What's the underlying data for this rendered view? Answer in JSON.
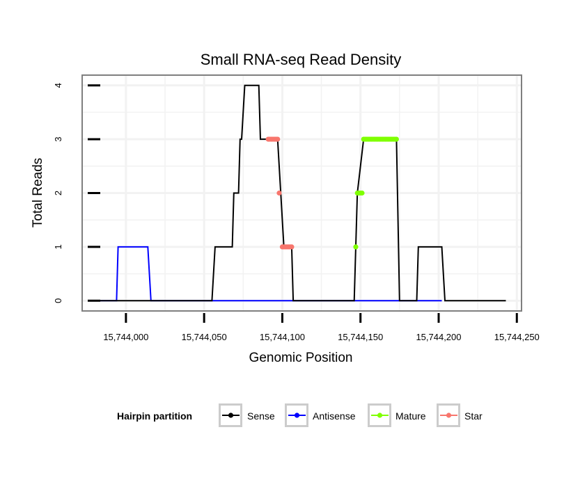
{
  "chart_data": {
    "type": "line",
    "title": "Small RNA-seq Read Density",
    "xlabel": "Genomic Position",
    "ylabel": "Total Reads",
    "xlim": [
      15743972,
      15744253
    ],
    "ylim": [
      -0.19,
      4.19
    ],
    "x_ticks": [
      15744000,
      15744050,
      15744100,
      15744150,
      15744200,
      15744250
    ],
    "x_tick_labels": [
      "15,744,000",
      "15,744,050",
      "15,744,100",
      "15,744,150",
      "15,744,200",
      "15,744,250"
    ],
    "y_ticks": [
      0,
      1,
      2,
      3,
      4
    ],
    "y_tick_labels": [
      "0",
      "1",
      "2",
      "3",
      "4"
    ],
    "grid": true,
    "legend": {
      "title": "Hairpin partition",
      "position": "bottom",
      "entries": [
        "Sense",
        "Antisense",
        "Mature",
        "Star"
      ]
    },
    "series": [
      {
        "name": "Sense",
        "color": "#000000",
        "points": [
          [
            15743981,
            0
          ],
          [
            15744055,
            0
          ],
          [
            15744057,
            1
          ],
          [
            15744068,
            1
          ],
          [
            15744069,
            2
          ],
          [
            15744072,
            2
          ],
          [
            15744073,
            3
          ],
          [
            15744074,
            3
          ],
          [
            15744076,
            4
          ],
          [
            15744085,
            4
          ],
          [
            15744086,
            3
          ],
          [
            15744097,
            3
          ],
          [
            15744099,
            2
          ],
          [
            15744101,
            1
          ],
          [
            15744106,
            1
          ],
          [
            15744107,
            0
          ],
          [
            15744146,
            0
          ],
          [
            15744148,
            2
          ],
          [
            15744152,
            3
          ],
          [
            15744173,
            3
          ],
          [
            15744175,
            0
          ],
          [
            15744186,
            0
          ],
          [
            15744187,
            1
          ],
          [
            15744202,
            1
          ],
          [
            15744204,
            0
          ],
          [
            15744243,
            0
          ]
        ]
      },
      {
        "name": "Antisense",
        "color": "#0000ff",
        "points": [
          [
            15743981,
            0
          ],
          [
            15743994,
            0
          ],
          [
            15743995,
            1
          ],
          [
            15744014,
            1
          ],
          [
            15744016,
            0
          ],
          [
            15744202,
            0
          ]
        ]
      },
      {
        "name": "Mature",
        "color": "#7fff00",
        "marker_x": [
          15744147,
          15744148,
          15744149,
          15744150,
          15744151,
          15744152,
          15744153,
          15744154,
          15744155,
          15744156,
          15744157,
          15744158,
          15744159,
          15744160,
          15744161,
          15744162,
          15744163,
          15744164,
          15744165,
          15744166,
          15744167,
          15744168,
          15744169,
          15744170,
          15744171,
          15744172,
          15744173
        ],
        "marker_y": [
          1,
          2,
          2,
          2,
          2,
          3,
          3,
          3,
          3,
          3,
          3,
          3,
          3,
          3,
          3,
          3,
          3,
          3,
          3,
          3,
          3,
          3,
          3,
          3,
          3,
          3,
          3
        ]
      },
      {
        "name": "Star",
        "color": "#f8766d",
        "marker_x": [
          15744091,
          15744092,
          15744093,
          15744094,
          15744095,
          15744096,
          15744097,
          15744098,
          15744100,
          15744101,
          15744102,
          15744103,
          15744104,
          15744105,
          15744106
        ],
        "marker_y": [
          3,
          3,
          3,
          3,
          3,
          3,
          3,
          2,
          1,
          1,
          1,
          1,
          1,
          1,
          1
        ]
      }
    ]
  }
}
